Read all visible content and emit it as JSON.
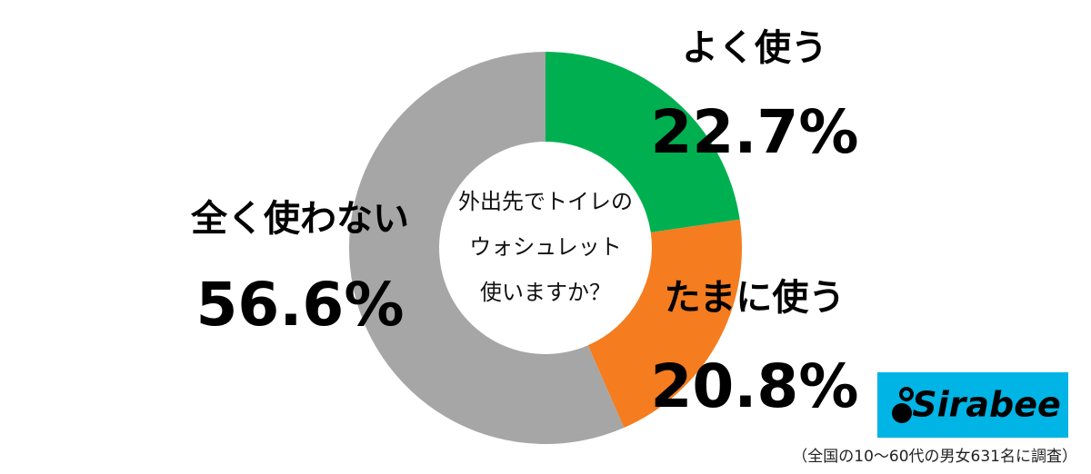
{
  "chart_data": {
    "type": "donut",
    "title": [
      "外出先でトイレの",
      "ウォシュレット",
      "使いますか？"
    ],
    "categories": [
      "よく使う",
      "たまに使う",
      "全く使わない"
    ],
    "values": [
      22.7,
      20.8,
      56.6
    ],
    "value_labels": [
      "22.7%",
      "20.8%",
      "56.6%"
    ],
    "colors": [
      "#00b050",
      "#f57c1f",
      "#a6a6a6"
    ],
    "note": "（全国の10〜60代の男女631名に調査）",
    "logo": "Sirabee"
  }
}
